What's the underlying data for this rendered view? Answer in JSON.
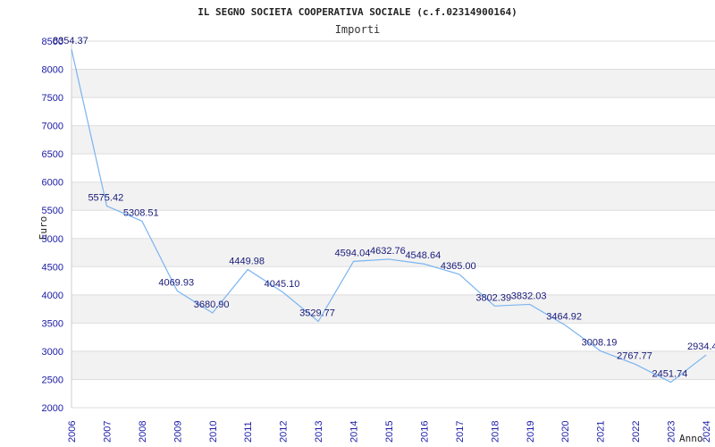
{
  "chart_data": {
    "type": "line",
    "title": "IL SEGNO SOCIETA COOPERATIVA SOCIALE (c.f.02314900164)",
    "subtitle": "Importi",
    "ylabel": "Euro",
    "xlabel": "Anno",
    "ylim": [
      2000,
      8500
    ],
    "y_ticks": [
      "2000",
      "2500",
      "3000",
      "3500",
      "4000",
      "4500",
      "5000",
      "5500",
      "6000",
      "6500",
      "7000",
      "7500",
      "8000",
      "8500"
    ],
    "categories": [
      "2006",
      "2007",
      "2008",
      "2009",
      "2010",
      "2011",
      "2012",
      "2013",
      "2014",
      "2015",
      "2016",
      "2017",
      "2018",
      "2019",
      "2020",
      "2021",
      "2022",
      "2023",
      "2024"
    ],
    "values": [
      8354.37,
      5575.42,
      5308.51,
      4069.93,
      3680.9,
      4449.98,
      4045.1,
      3529.77,
      4594.04,
      4632.76,
      4548.64,
      4365.0,
      3802.39,
      3832.03,
      3464.92,
      3008.19,
      2767.77,
      2451.74,
      2934.4
    ],
    "data_labels": [
      "8354.37",
      "5575.42",
      "5308.51",
      "4069.93",
      "3680.90",
      "4449.98",
      "4045.10",
      "3529.77",
      "4594.04",
      "4632.76",
      "4548.64",
      "4365.00",
      "3802.39",
      "3832.03",
      "3464.92",
      "3008.19",
      "2767.77",
      "2451.74",
      "2934.40"
    ],
    "grid": true,
    "colors": {
      "line": "#7ab4f0",
      "band": "#f2f2f2",
      "grid": "#dddddd",
      "tick_text": "#1a1aa6",
      "label_text": "#1a1a7a"
    }
  }
}
